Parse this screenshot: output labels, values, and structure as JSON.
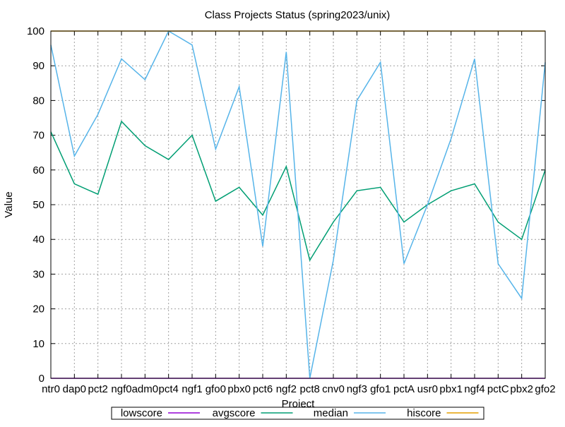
{
  "chart_data": {
    "type": "line",
    "title": "Class Projects Status (spring2023/unix)",
    "xlabel": "Project",
    "ylabel": "Value",
    "ylim": [
      0,
      100
    ],
    "yticks": [
      0,
      10,
      20,
      30,
      40,
      50,
      60,
      70,
      80,
      90,
      100
    ],
    "grid": true,
    "legend_position": "bottom-center",
    "categories": [
      "ntr0",
      "dap0",
      "pct2",
      "ngf0",
      "adm0",
      "pct4",
      "ngf1",
      "gfo0",
      "pbx0",
      "pct6",
      "ngf2",
      "pct8",
      "cnv0",
      "ngf3",
      "gfo1",
      "pctA",
      "usr0",
      "pbx1",
      "ngf4",
      "pctC",
      "pbx2",
      "gfo2"
    ],
    "series": [
      {
        "name": "lowscore",
        "color": "#9400d3",
        "values": [
          0,
          0,
          0,
          0,
          0,
          0,
          0,
          0,
          0,
          0,
          0,
          0,
          0,
          0,
          0,
          0,
          0,
          0,
          0,
          0,
          0,
          0
        ]
      },
      {
        "name": "avgscore",
        "color": "#009e73",
        "values": [
          71,
          56,
          53,
          74,
          67,
          63,
          70,
          51,
          55,
          47,
          61,
          34,
          45,
          54,
          55,
          45,
          50,
          54,
          56,
          45,
          40,
          60
        ]
      },
      {
        "name": "median",
        "color": "#56b4e9",
        "values": [
          96,
          64,
          76,
          92,
          86,
          100,
          96,
          66,
          84,
          38,
          94,
          0,
          34,
          80,
          91,
          33,
          50,
          69,
          92,
          33,
          23,
          91
        ]
      },
      {
        "name": "hiscore",
        "color": "#e69f00",
        "values": [
          100,
          100,
          100,
          100,
          100,
          100,
          100,
          100,
          100,
          100,
          100,
          100,
          100,
          100,
          100,
          100,
          100,
          100,
          100,
          100,
          100,
          100
        ]
      }
    ]
  }
}
